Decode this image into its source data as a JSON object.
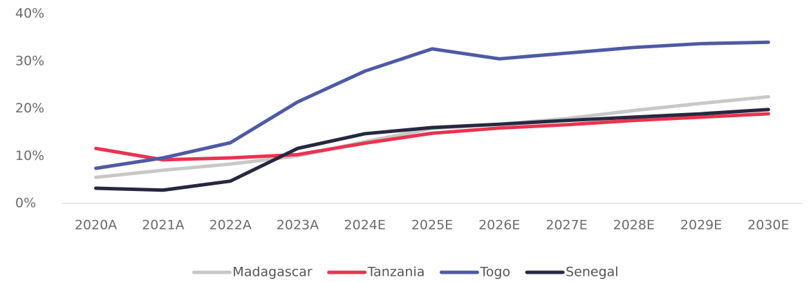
{
  "chart_data": {
    "type": "line",
    "categories": [
      "2020A",
      "2021A",
      "2022A",
      "2023A",
      "2024E",
      "2025E",
      "2026E",
      "2027E",
      "2028E",
      "2029E",
      "2030E"
    ],
    "series": [
      {
        "name": "Madagascar",
        "color": "#c8c8c8",
        "values": [
          5.5,
          7,
          8.3,
          10,
          13,
          15.8,
          16.7,
          17.9,
          19.6,
          21.1,
          22.5
        ]
      },
      {
        "name": "Tanzania",
        "color": "#e8334f",
        "values": [
          11.6,
          9.2,
          9.6,
          10.3,
          12.7,
          14.8,
          15.9,
          16.6,
          17.5,
          18.2,
          18.9
        ]
      },
      {
        "name": "Togo",
        "color": "#4f5aa5",
        "values": [
          7.4,
          9.6,
          12.8,
          21.4,
          27.9,
          32.6,
          30.5,
          31.7,
          32.9,
          33.7,
          34
        ]
      },
      {
        "name": "Senegal",
        "color": "#262840",
        "values": [
          3.2,
          2.8,
          4.7,
          11.6,
          14.7,
          16,
          16.7,
          17.5,
          18.2,
          18.9,
          19.8
        ]
      }
    ],
    "ylim": [
      0,
      40
    ],
    "yticks": [
      {
        "value": 0,
        "label": "0%"
      },
      {
        "value": 10,
        "label": "10%"
      },
      {
        "value": 20,
        "label": "20%"
      },
      {
        "value": 30,
        "label": "30%"
      },
      {
        "value": 40,
        "label": "40%"
      }
    ],
    "grid": false,
    "legend": "bottom"
  }
}
